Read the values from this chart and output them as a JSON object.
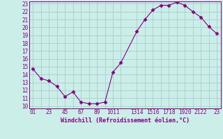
{
  "x": [
    0,
    1,
    2,
    3,
    4,
    5,
    6,
    7,
    8,
    9,
    10,
    11,
    13,
    14,
    15,
    16,
    17,
    18,
    19,
    20,
    21,
    22,
    23
  ],
  "y": [
    14.7,
    13.5,
    13.2,
    12.5,
    11.2,
    11.8,
    10.5,
    10.3,
    10.3,
    10.5,
    14.3,
    15.5,
    19.5,
    21.0,
    22.2,
    22.8,
    22.8,
    23.2,
    22.8,
    22.0,
    21.3,
    20.1,
    19.2
  ],
  "line_color": "#800080",
  "marker": "D",
  "bg_color": "#cceee8",
  "grid_color": "#aacccc",
  "text_color": "#800080",
  "xlabel": "Windchill (Refroidissement éolien,°C)",
  "ylim": [
    10,
    23
  ],
  "xlim": [
    -0.5,
    23.5
  ],
  "yticks": [
    10,
    11,
    12,
    13,
    14,
    15,
    16,
    17,
    18,
    19,
    20,
    21,
    22,
    23
  ],
  "xticks": [
    0,
    1,
    2,
    3,
    4,
    5,
    6,
    7,
    8,
    9,
    10,
    11,
    13,
    14,
    15,
    16,
    17,
    18,
    19,
    20,
    21,
    22,
    23
  ],
  "xticklabels": [
    "0",
    "1",
    "2",
    "3",
    "4",
    "5",
    "6",
    "7",
    "8",
    "9",
    "1011",
    "",
    "1314",
    "",
    "1516",
    "",
    "1718",
    "",
    "1920",
    "",
    "2122",
    "",
    "23"
  ],
  "font_size": 5.5,
  "xlabel_fontsize": 6.0,
  "lw": 0.8,
  "marker_size": 2.5
}
